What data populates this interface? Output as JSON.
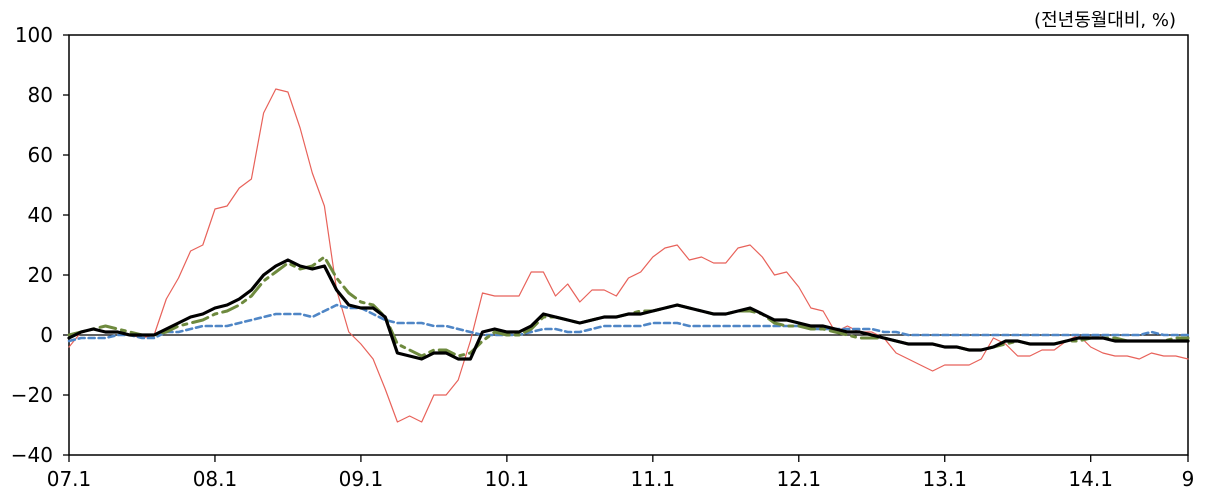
{
  "chart_data": {
    "type": "line",
    "title": "",
    "unit_label": "(전년동월대비, %)",
    "xlabel": "",
    "ylabel": "",
    "ylim": [
      -40,
      100
    ],
    "x_ticks": [
      "07.1",
      "08.1",
      "09.1",
      "10.1",
      "11.1",
      "12.1",
      "13.1",
      "14.1",
      "9"
    ],
    "y_ticks": [
      100,
      80,
      60,
      40,
      20,
      0,
      -20,
      -40
    ],
    "grid": false,
    "zero_line": true,
    "x_index_range": [
      0,
      92
    ],
    "series": [
      {
        "color": "#e8625a",
        "style": "solid-thin",
        "x": [
          0,
          1,
          2,
          3,
          4,
          5,
          6,
          7,
          8,
          9,
          10,
          11,
          12,
          13,
          14,
          15,
          16,
          17,
          18,
          19,
          20,
          21,
          22,
          23,
          24,
          25,
          26,
          27,
          28,
          29,
          30,
          31,
          32,
          33,
          34,
          35,
          36,
          37,
          38,
          39,
          40,
          41,
          42,
          43,
          44,
          45,
          46,
          47,
          48,
          49,
          50,
          51,
          52,
          53,
          54,
          55,
          56,
          57,
          58,
          59,
          60,
          61,
          62,
          63,
          64,
          65,
          66,
          67,
          68,
          69,
          70,
          71,
          72,
          73,
          74,
          75,
          76,
          77,
          78,
          79,
          80,
          81,
          82,
          83,
          84,
          85,
          86,
          87,
          88,
          89,
          90,
          91,
          92
        ],
        "values": [
          -4,
          1,
          2,
          1,
          1,
          0,
          -1,
          0,
          12,
          19,
          28,
          30,
          42,
          43,
          49,
          52,
          74,
          82,
          81,
          69,
          54,
          43,
          15,
          1,
          -3,
          -8,
          -18,
          -29,
          -27,
          -29,
          -20,
          -20,
          -15,
          -2,
          14,
          13,
          13,
          13,
          21,
          21,
          13,
          17,
          11,
          15,
          15,
          13,
          19,
          21,
          26,
          29,
          30,
          25,
          26,
          24,
          24,
          29,
          30,
          26,
          20,
          21,
          16,
          9,
          8,
          1,
          3,
          1,
          1,
          -1,
          -6,
          -8,
          -10,
          -12,
          -10,
          -10,
          -10,
          -8,
          -1,
          -3,
          -7,
          -7,
          -5,
          -5,
          -2,
          0,
          -4,
          -6,
          -7,
          -7,
          -8,
          -6,
          -7,
          -7,
          -8
        ]
      },
      {
        "color": "#000000",
        "style": "solid-thick",
        "x": [
          0,
          1,
          2,
          3,
          4,
          5,
          6,
          7,
          8,
          9,
          10,
          11,
          12,
          13,
          14,
          15,
          16,
          17,
          18,
          19,
          20,
          21,
          22,
          23,
          24,
          25,
          26,
          27,
          28,
          29,
          30,
          31,
          32,
          33,
          34,
          35,
          36,
          37,
          38,
          39,
          40,
          41,
          42,
          43,
          44,
          45,
          46,
          47,
          48,
          49,
          50,
          51,
          52,
          53,
          54,
          55,
          56,
          57,
          58,
          59,
          60,
          61,
          62,
          63,
          64,
          65,
          66,
          67,
          68,
          69,
          70,
          71,
          72,
          73,
          74,
          75,
          76,
          77,
          78,
          79,
          80,
          81,
          82,
          83,
          84,
          85,
          86,
          87,
          88,
          89,
          90,
          91,
          92
        ],
        "values": [
          -1,
          1,
          2,
          1,
          1,
          0,
          0,
          0,
          2,
          4,
          6,
          7,
          9,
          10,
          12,
          15,
          20,
          23,
          25,
          23,
          22,
          23,
          15,
          10,
          9,
          9,
          6,
          -6,
          -7,
          -8,
          -6,
          -6,
          -8,
          -8,
          1,
          2,
          1,
          1,
          3,
          7,
          6,
          5,
          4,
          5,
          6,
          6,
          7,
          7,
          8,
          9,
          10,
          9,
          8,
          7,
          7,
          8,
          9,
          7,
          5,
          5,
          4,
          3,
          3,
          2,
          1,
          1,
          0,
          -1,
          -2,
          -3,
          -3,
          -3,
          -4,
          -4,
          -5,
          -5,
          -4,
          -2,
          -2,
          -3,
          -3,
          -3,
          -2,
          -1,
          -1,
          -1,
          -2,
          -2,
          -2,
          -2,
          -2,
          -2,
          -2
        ]
      },
      {
        "color": "#6e8a3e",
        "style": "long-dash",
        "x": [
          0,
          1,
          2,
          3,
          4,
          5,
          6,
          7,
          8,
          9,
          10,
          11,
          12,
          13,
          14,
          15,
          16,
          17,
          18,
          19,
          20,
          21,
          22,
          23,
          24,
          25,
          26,
          27,
          28,
          29,
          30,
          31,
          32,
          33,
          34,
          35,
          36,
          37,
          38,
          39,
          40,
          41,
          42,
          43,
          44,
          45,
          46,
          47,
          48,
          49,
          50,
          51,
          52,
          53,
          54,
          55,
          56,
          57,
          58,
          59,
          60,
          61,
          62,
          63,
          64,
          65,
          66,
          67,
          68,
          69,
          70,
          71,
          72,
          73,
          74,
          75,
          76,
          77,
          78,
          79,
          80,
          81,
          82,
          83,
          84,
          85,
          86,
          87,
          88,
          89,
          90,
          91,
          92
        ],
        "values": [
          0,
          1,
          2,
          3,
          2,
          1,
          0,
          0,
          1,
          3,
          4,
          5,
          7,
          8,
          10,
          13,
          18,
          21,
          24,
          22,
          23,
          26,
          19,
          14,
          11,
          10,
          6,
          -3,
          -5,
          -7,
          -5,
          -5,
          -7,
          -6,
          -2,
          1,
          0,
          0,
          2,
          6,
          6,
          5,
          4,
          5,
          6,
          6,
          7,
          8,
          8,
          9,
          10,
          9,
          8,
          7,
          7,
          8,
          8,
          7,
          4,
          3,
          3,
          2,
          2,
          1,
          0,
          -1,
          -1,
          -1,
          -2,
          -3,
          -3,
          -3,
          -4,
          -4,
          -5,
          -5,
          -4,
          -3,
          -2,
          -3,
          -3,
          -3,
          -2,
          -2,
          -1,
          -1,
          -1,
          -2,
          -2,
          -2,
          -2,
          -1,
          -1
        ]
      },
      {
        "color": "#4f86c6",
        "style": "short-dash",
        "x": [
          0,
          1,
          2,
          3,
          4,
          5,
          6,
          7,
          8,
          9,
          10,
          11,
          12,
          13,
          14,
          15,
          16,
          17,
          18,
          19,
          20,
          21,
          22,
          23,
          24,
          25,
          26,
          27,
          28,
          29,
          30,
          31,
          32,
          33,
          34,
          35,
          36,
          37,
          38,
          39,
          40,
          41,
          42,
          43,
          44,
          45,
          46,
          47,
          48,
          49,
          50,
          51,
          52,
          53,
          54,
          55,
          56,
          57,
          58,
          59,
          60,
          61,
          62,
          63,
          64,
          65,
          66,
          67,
          68,
          69,
          70,
          71,
          72,
          73,
          74,
          75,
          76,
          77,
          78,
          79,
          80,
          81,
          82,
          83,
          84,
          85,
          86,
          87,
          88,
          89,
          90,
          91,
          92
        ],
        "values": [
          -2,
          -1,
          -1,
          -1,
          0,
          0,
          -1,
          -1,
          1,
          1,
          2,
          3,
          3,
          3,
          4,
          5,
          6,
          7,
          7,
          7,
          6,
          8,
          10,
          9,
          9,
          7,
          5,
          4,
          4,
          4,
          3,
          3,
          2,
          1,
          0,
          0,
          0,
          0,
          1,
          2,
          2,
          1,
          1,
          2,
          3,
          3,
          3,
          3,
          4,
          4,
          4,
          3,
          3,
          3,
          3,
          3,
          3,
          3,
          3,
          3,
          3,
          2,
          2,
          2,
          2,
          2,
          2,
          1,
          1,
          0,
          0,
          0,
          0,
          0,
          0,
          0,
          0,
          0,
          0,
          0,
          0,
          0,
          0,
          0,
          0,
          0,
          0,
          0,
          0,
          1,
          0,
          0,
          0
        ]
      }
    ]
  }
}
